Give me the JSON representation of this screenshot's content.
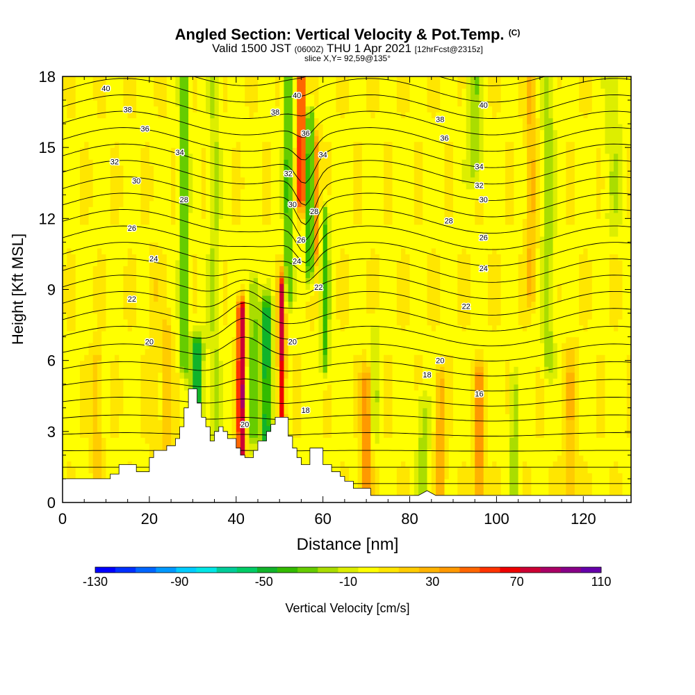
{
  "header": {
    "title": "Angled Section: Vertical Velocity & Pot.Temp.",
    "title_mark": "(C)",
    "subtitle_valid": "Valid 1500 JST",
    "subtitle_zulu": "(0600Z)",
    "subtitle_date": "THU 1 Apr 2021",
    "subtitle_fcst": "[12hrFcst@2315z]",
    "slice": "slice X,Y= 92,59@135°"
  },
  "chart_data": {
    "type": "heatmap",
    "xlabel": "Distance [nm]",
    "ylabel": "Height [Kft MSL]",
    "xlim": [
      0,
      131
    ],
    "ylim": [
      0,
      18
    ],
    "x_ticks": [
      0,
      20,
      40,
      60,
      80,
      100,
      120
    ],
    "y_ticks": [
      0,
      3,
      6,
      9,
      12,
      15,
      18
    ],
    "colorbar": {
      "label": "Vertical Velocity [cm/s]",
      "ticks": [
        -130,
        -90,
        -50,
        -10,
        30,
        70,
        110
      ],
      "levels": [
        -130,
        -120,
        -110,
        -100,
        -90,
        -80,
        -70,
        -60,
        -50,
        -40,
        -30,
        -20,
        -10,
        0,
        10,
        20,
        30,
        40,
        50,
        60,
        70,
        80,
        90,
        100,
        110
      ],
      "colors": [
        "#0000ff",
        "#0030ff",
        "#0066ff",
        "#0099ff",
        "#00ccff",
        "#00e6e6",
        "#00cc99",
        "#00cc66",
        "#11b32a",
        "#33bb00",
        "#66cc00",
        "#aadd00",
        "#ddee00",
        "#ffff00",
        "#ffe600",
        "#ffcc00",
        "#ffb300",
        "#ff9900",
        "#ff6600",
        "#ff3300",
        "#ee0000",
        "#cc0033",
        "#aa0066",
        "#880088",
        "#6600aa"
      ]
    },
    "terrain": [
      [
        0,
        1.0
      ],
      [
        11,
        1.0
      ],
      [
        11,
        1.2
      ],
      [
        13,
        1.2
      ],
      [
        13,
        1.6
      ],
      [
        17,
        1.6
      ],
      [
        17,
        1.3
      ],
      [
        20,
        1.3
      ],
      [
        20,
        1.9
      ],
      [
        21,
        1.9
      ],
      [
        21,
        2.2
      ],
      [
        24,
        2.2
      ],
      [
        24,
        2.4
      ],
      [
        26,
        2.4
      ],
      [
        26,
        2.7
      ],
      [
        27,
        2.7
      ],
      [
        27,
        3.2
      ],
      [
        28,
        3.2
      ],
      [
        28,
        4.0
      ],
      [
        29,
        4.0
      ],
      [
        29,
        4.8
      ],
      [
        31,
        4.8
      ],
      [
        31,
        4.2
      ],
      [
        32,
        4.2
      ],
      [
        32,
        3.6
      ],
      [
        33,
        3.6
      ],
      [
        33,
        3.2
      ],
      [
        34,
        3.2
      ],
      [
        34,
        2.6
      ],
      [
        35,
        2.6
      ],
      [
        35,
        3.0
      ],
      [
        36,
        3.0
      ],
      [
        36,
        3.2
      ],
      [
        37,
        3.2
      ],
      [
        37,
        3.0
      ],
      [
        38,
        3.0
      ],
      [
        38,
        2.7
      ],
      [
        40,
        2.7
      ],
      [
        40,
        2.3
      ],
      [
        41,
        2.3
      ],
      [
        41,
        2.0
      ],
      [
        42,
        2.0
      ],
      [
        42,
        1.9
      ],
      [
        44,
        1.9
      ],
      [
        44,
        2.2
      ],
      [
        45,
        2.2
      ],
      [
        45,
        2.6
      ],
      [
        47,
        2.6
      ],
      [
        47,
        3.0
      ],
      [
        48,
        3.0
      ],
      [
        48,
        3.3
      ],
      [
        49,
        3.3
      ],
      [
        49,
        3.6
      ],
      [
        52,
        3.6
      ],
      [
        52,
        2.8
      ],
      [
        53,
        2.8
      ],
      [
        53,
        2.3
      ],
      [
        54,
        2.3
      ],
      [
        54,
        1.9
      ],
      [
        55,
        1.9
      ],
      [
        55,
        1.6
      ],
      [
        57,
        1.6
      ],
      [
        57,
        2.3
      ],
      [
        60,
        2.3
      ],
      [
        60,
        1.6
      ],
      [
        62,
        1.6
      ],
      [
        62,
        1.3
      ],
      [
        64,
        1.3
      ],
      [
        64,
        1.1
      ],
      [
        65,
        1.1
      ],
      [
        65,
        0.9
      ],
      [
        67,
        0.9
      ],
      [
        67,
        0.6
      ],
      [
        71,
        0.6
      ],
      [
        71,
        0.3
      ],
      [
        82,
        0.3
      ],
      [
        84,
        0.5
      ],
      [
        86,
        0.3
      ],
      [
        131,
        0.3
      ]
    ],
    "theta_labels": [
      {
        "x": 10,
        "y": 17.5,
        "value": "40"
      },
      {
        "x": 15,
        "y": 16.6,
        "value": "38"
      },
      {
        "x": 19,
        "y": 15.8,
        "value": "36"
      },
      {
        "x": 27,
        "y": 14.8,
        "value": "34"
      },
      {
        "x": 12,
        "y": 14.4,
        "value": "32"
      },
      {
        "x": 17,
        "y": 13.6,
        "value": "30"
      },
      {
        "x": 28,
        "y": 12.8,
        "value": "28"
      },
      {
        "x": 16,
        "y": 11.6,
        "value": "26"
      },
      {
        "x": 21,
        "y": 10.3,
        "value": "24"
      },
      {
        "x": 16,
        "y": 8.6,
        "value": "22"
      },
      {
        "x": 20,
        "y": 6.8,
        "value": "20"
      },
      {
        "x": 42,
        "y": 3.3,
        "value": "20"
      },
      {
        "x": 54,
        "y": 17.2,
        "value": "40"
      },
      {
        "x": 49,
        "y": 16.5,
        "value": "38"
      },
      {
        "x": 56,
        "y": 15.6,
        "value": "36"
      },
      {
        "x": 60,
        "y": 14.7,
        "value": "34"
      },
      {
        "x": 52,
        "y": 13.9,
        "value": "32"
      },
      {
        "x": 53,
        "y": 12.6,
        "value": "30"
      },
      {
        "x": 58,
        "y": 12.3,
        "value": "28"
      },
      {
        "x": 55,
        "y": 11.1,
        "value": "26"
      },
      {
        "x": 54,
        "y": 10.2,
        "value": "24"
      },
      {
        "x": 59,
        "y": 9.1,
        "value": "22"
      },
      {
        "x": 53,
        "y": 6.8,
        "value": "20"
      },
      {
        "x": 56,
        "y": 3.9,
        "value": "18"
      },
      {
        "x": 97,
        "y": 16.8,
        "value": "40"
      },
      {
        "x": 87,
        "y": 16.2,
        "value": "38"
      },
      {
        "x": 88,
        "y": 15.4,
        "value": "36"
      },
      {
        "x": 96,
        "y": 14.2,
        "value": "34"
      },
      {
        "x": 96,
        "y": 13.4,
        "value": "32"
      },
      {
        "x": 97,
        "y": 12.8,
        "value": "30"
      },
      {
        "x": 89,
        "y": 11.9,
        "value": "28"
      },
      {
        "x": 97,
        "y": 11.2,
        "value": "26"
      },
      {
        "x": 97,
        "y": 9.9,
        "value": "24"
      },
      {
        "x": 93,
        "y": 8.3,
        "value": "22"
      },
      {
        "x": 87,
        "y": 6.0,
        "value": "20"
      },
      {
        "x": 84,
        "y": 5.4,
        "value": "18"
      },
      {
        "x": 96,
        "y": 4.6,
        "value": "16"
      }
    ]
  }
}
